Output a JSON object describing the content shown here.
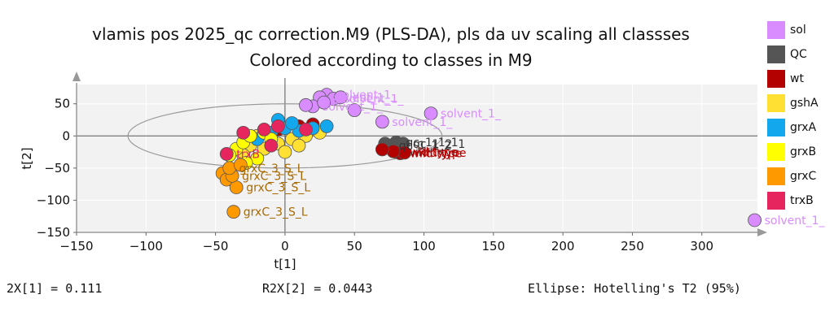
{
  "chart_data": {
    "type": "scatter",
    "title": "vlamis pos 2025_qc correction.M9 (PLS-DA), pls da uv scaling all classses",
    "subtitle": "Colored according to classes in M9",
    "xlabel": "t[1]",
    "ylabel": "t[2]",
    "xlim": [
      -150,
      340
    ],
    "ylim": [
      -150,
      80
    ],
    "xticks": [
      -150,
      -100,
      -50,
      0,
      50,
      100,
      150,
      200,
      250,
      300
    ],
    "yticks": [
      50,
      0,
      -50,
      -100,
      -150
    ],
    "grid": true,
    "ellipse": {
      "label": "Ellipse: Hotelling's T2 (95%)",
      "center": [
        0,
        0
      ],
      "rx": 113,
      "ry": 50
    },
    "legend": [
      {
        "name": "sol",
        "color": "#d88cff"
      },
      {
        "name": "QC",
        "color": "#555555"
      },
      {
        "name": "wt",
        "color": "#b30000"
      },
      {
        "name": "gshA",
        "color": "#ffe033"
      },
      {
        "name": "grxA",
        "color": "#13a8ee"
      },
      {
        "name": "grxB",
        "color": "#ffff00"
      },
      {
        "name": "grxC",
        "color": "#ff9900"
      },
      {
        "name": "trxB",
        "color": "#e6245e"
      }
    ],
    "series": [
      {
        "name": "sol",
        "points": [
          {
            "x": 105,
            "y": 35,
            "label": "solvent_1_"
          },
          {
            "x": 338,
            "y": -131,
            "label": "solvent_1_"
          },
          {
            "x": 30,
            "y": 64,
            "label": "solvent_1_"
          },
          {
            "x": 25,
            "y": 60,
            "label": "solvent_1_"
          },
          {
            "x": 35,
            "y": 58,
            "label": "solvent_1_"
          },
          {
            "x": 20,
            "y": 46,
            "label": "solvent_1_"
          },
          {
            "x": 15,
            "y": 48,
            "label": ""
          },
          {
            "x": 40,
            "y": 60,
            "label": ""
          },
          {
            "x": 28,
            "y": 52,
            "label": ""
          },
          {
            "x": 50,
            "y": 40,
            "label": ""
          },
          {
            "x": 70,
            "y": 22,
            "label": "solvent_1_"
          }
        ]
      },
      {
        "name": "QC",
        "points": [
          {
            "x": 75,
            "y": -15,
            "label": "qc_1_1_2"
          },
          {
            "x": 80,
            "y": -10,
            "label": "qc_1_1_1"
          },
          {
            "x": 85,
            "y": -12,
            "label": "qc_1_2_1"
          },
          {
            "x": 78,
            "y": -14,
            "label": ""
          },
          {
            "x": 72,
            "y": -12,
            "label": ""
          },
          {
            "x": 82,
            "y": -13,
            "label": ""
          }
        ]
      },
      {
        "name": "wt",
        "points": [
          {
            "x": 80,
            "y": -25,
            "label": "wild type"
          },
          {
            "x": 83,
            "y": -27,
            "label": "wild type"
          },
          {
            "x": 86,
            "y": -26,
            "label": "wild type"
          },
          {
            "x": 78,
            "y": -24,
            "label": ""
          },
          {
            "x": 70,
            "y": -21,
            "label": ""
          },
          {
            "x": -5,
            "y": 10,
            "label": ""
          },
          {
            "x": 10,
            "y": 15,
            "label": ""
          },
          {
            "x": 20,
            "y": 18,
            "label": ""
          }
        ]
      },
      {
        "name": "gshA",
        "points": [
          {
            "x": -25,
            "y": -15,
            "label": ""
          },
          {
            "x": -15,
            "y": -20,
            "label": ""
          },
          {
            "x": -5,
            "y": -12,
            "label": ""
          },
          {
            "x": 5,
            "y": -5,
            "label": ""
          },
          {
            "x": 15,
            "y": 0,
            "label": ""
          },
          {
            "x": -30,
            "y": -30,
            "label": ""
          },
          {
            "x": 0,
            "y": -25,
            "label": ""
          },
          {
            "x": 25,
            "y": 5,
            "label": ""
          },
          {
            "x": -20,
            "y": 0,
            "label": ""
          },
          {
            "x": 10,
            "y": -15,
            "label": ""
          }
        ]
      },
      {
        "name": "grxA",
        "points": [
          {
            "x": -10,
            "y": 5,
            "label": ""
          },
          {
            "x": 0,
            "y": 12,
            "label": ""
          },
          {
            "x": 10,
            "y": 8,
            "label": ""
          },
          {
            "x": 20,
            "y": 12,
            "label": ""
          },
          {
            "x": -20,
            "y": -5,
            "label": ""
          },
          {
            "x": 5,
            "y": 20,
            "label": ""
          },
          {
            "x": 30,
            "y": 15,
            "label": ""
          },
          {
            "x": -5,
            "y": 25,
            "label": ""
          }
        ]
      },
      {
        "name": "grxB",
        "points": [
          {
            "x": -35,
            "y": -20,
            "label": ""
          },
          {
            "x": -30,
            "y": -10,
            "label": ""
          },
          {
            "x": -25,
            "y": 0,
            "label": ""
          },
          {
            "x": -15,
            "y": 5,
            "label": ""
          },
          {
            "x": -40,
            "y": -30,
            "label": ""
          },
          {
            "x": -20,
            "y": -35,
            "label": ""
          },
          {
            "x": -28,
            "y": -42,
            "label": ""
          },
          {
            "x": -10,
            "y": -5,
            "label": ""
          }
        ]
      },
      {
        "name": "grxC",
        "points": [
          {
            "x": -45,
            "y": -58,
            "label": ""
          },
          {
            "x": -42,
            "y": -68,
            "label": ""
          },
          {
            "x": -35,
            "y": -80,
            "label": "grxC_3_S_L"
          },
          {
            "x": -37,
            "y": -118,
            "label": "grxC_3_S_L"
          },
          {
            "x": -38,
            "y": -62,
            "label": "grxC_3_S_L"
          },
          {
            "x": -40,
            "y": -50,
            "label": "grxC_3_S_L"
          },
          {
            "x": -32,
            "y": -45,
            "label": ""
          }
        ]
      },
      {
        "name": "trxB",
        "points": [
          {
            "x": -42,
            "y": -28,
            "label": "trxB"
          },
          {
            "x": -30,
            "y": 5,
            "label": ""
          },
          {
            "x": -15,
            "y": 10,
            "label": ""
          },
          {
            "x": -5,
            "y": 15,
            "label": ""
          },
          {
            "x": 15,
            "y": 10,
            "label": ""
          },
          {
            "x": -10,
            "y": -15,
            "label": ""
          }
        ]
      }
    ]
  },
  "stats": {
    "r2x1": "2X[1] = 0.111",
    "r2x2": "R2X[2] = 0.0443",
    "ellipse": "Ellipse: Hotelling's T2 (95%)"
  }
}
